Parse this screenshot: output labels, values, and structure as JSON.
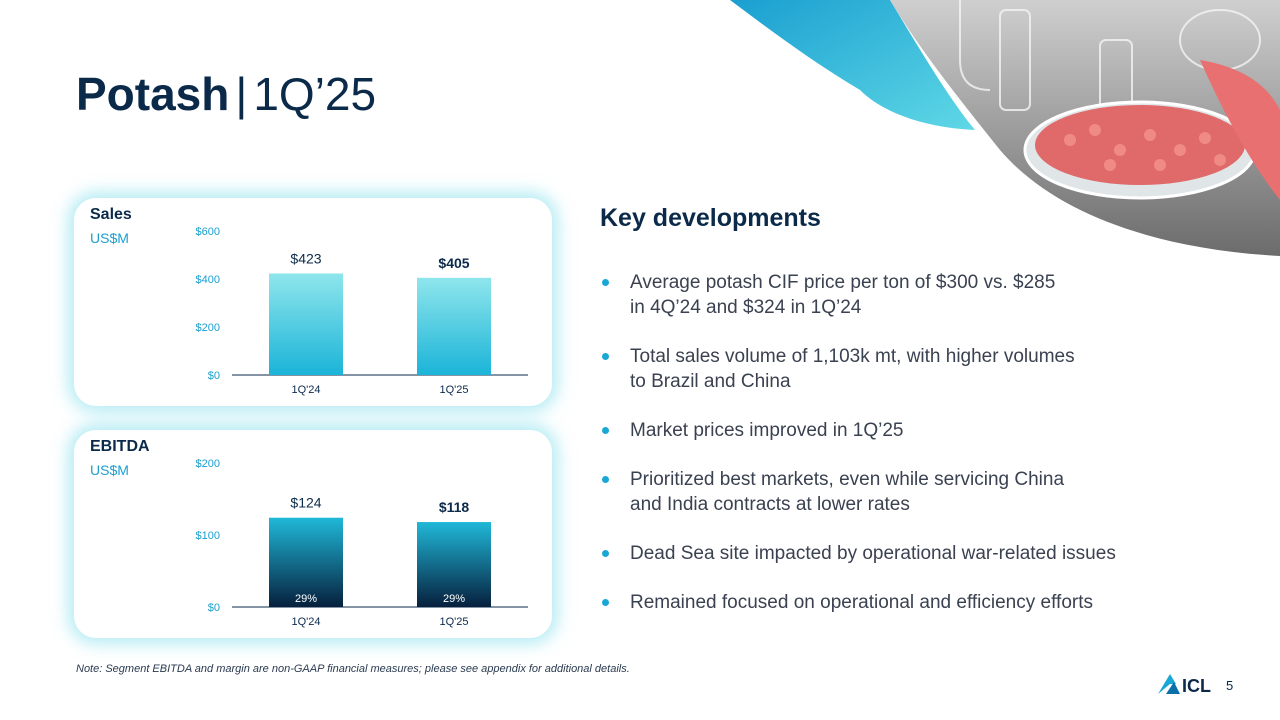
{
  "title": {
    "main": "Potash",
    "separator": "|",
    "period": "1Q’25"
  },
  "charts": {
    "sales": {
      "title": "Sales",
      "unit": "US$M"
    },
    "ebitda": {
      "title": "EBITDA",
      "unit": "US$M"
    }
  },
  "chart_data": [
    {
      "type": "bar",
      "title": "Sales",
      "ylabel": "US$M",
      "categories": [
        "1Q'24",
        "1Q'25"
      ],
      "values": [
        423,
        405
      ],
      "value_labels": [
        "$423",
        "$405"
      ],
      "yticks": [
        "$0",
        "$200",
        "$400",
        "$600"
      ],
      "ylim": [
        0,
        600
      ],
      "grid": false
    },
    {
      "type": "bar",
      "title": "EBITDA",
      "ylabel": "US$M",
      "categories": [
        "1Q'24",
        "1Q'25"
      ],
      "values": [
        124,
        118
      ],
      "value_labels": [
        "$124",
        "$118"
      ],
      "margins": [
        "29%",
        "29%"
      ],
      "yticks": [
        "$0",
        "$100",
        "$200"
      ],
      "ylim": [
        0,
        200
      ],
      "grid": false
    }
  ],
  "key_developments": {
    "title": "Key developments",
    "bullets": [
      [
        "Average potash CIF price per ton of $300 vs. $285",
        "in 4Q’24 and $324 in 1Q’24"
      ],
      [
        "Total sales volume of 1,103k mt, with higher volumes",
        "to Brazil and China"
      ],
      [
        "Market prices improved in 1Q’25"
      ],
      [
        "Prioritized best markets, even while servicing China",
        "and India contracts at lower rates"
      ],
      [
        "Dead Sea site impacted by operational war-related issues"
      ],
      [
        "Remained focused on operational and efficiency efforts"
      ]
    ]
  },
  "footer": {
    "note": "Note: Segment EBITDA and margin are non-GAAP financial measures; please see appendix for additional details.",
    "logo_text": "ICL",
    "page_number": "5"
  },
  "colors": {
    "navy": "#0b2a4a",
    "accent": "#1aa7d6",
    "sales_bar_top": "#8fe6ec",
    "sales_bar_bottom": "#1bb4d8",
    "ebitda_bar_top": "#20b8d8",
    "ebitda_bar_bottom": "#06203d"
  }
}
